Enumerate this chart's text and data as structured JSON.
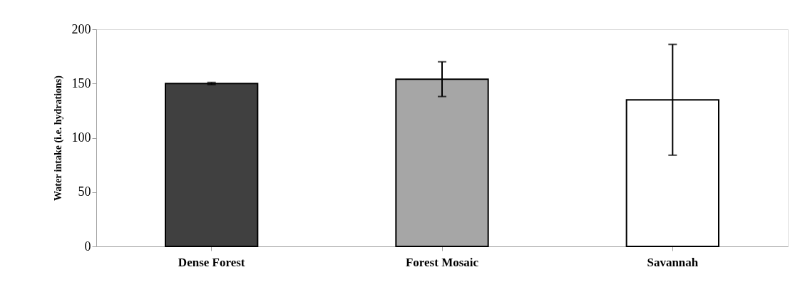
{
  "chart_data": {
    "type": "bar",
    "ylabel": "Water intake (i.e. hydrations)",
    "categories": [
      "Dense Forest",
      "Forest Mosaic",
      "Savannah"
    ],
    "values": [
      150,
      154,
      135
    ],
    "colors": [
      "#404040",
      "#a6a6a6",
      "#ffffff"
    ],
    "errors": [
      1,
      16,
      51
    ],
    "ylim": [
      0,
      200
    ],
    "yticks": [
      0,
      50,
      100,
      150,
      200
    ],
    "grid": false,
    "legend": false
  }
}
